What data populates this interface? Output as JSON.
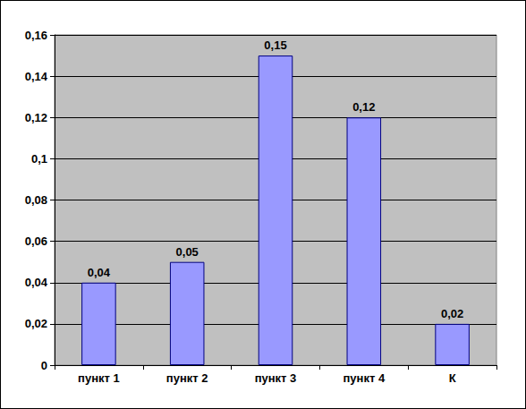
{
  "chart_data": {
    "type": "bar",
    "categories": [
      "пункт 1",
      "пункт 2",
      "пункт 3",
      "пункт 4",
      "К"
    ],
    "values": [
      0.04,
      0.05,
      0.15,
      0.12,
      0.02
    ],
    "value_labels": [
      "0,04",
      "0,05",
      "0,15",
      "0,12",
      "0,02"
    ],
    "color": "#9999ff",
    "ylim": [
      0,
      0.16
    ],
    "yticks": [
      0,
      {
        "value": 0.02,
        "label": "0,02"
      },
      {
        "value": 0.04,
        "label": "0,04"
      },
      {
        "value": 0.06,
        "label": "0,06"
      },
      {
        "value": 0.08,
        "label": "0,08"
      },
      {
        "value": 0.1,
        "label": "0,1"
      },
      {
        "value": 0.12,
        "label": "0,12"
      },
      {
        "value": 0.14,
        "label": "0,14"
      },
      {
        "value": 0.16,
        "label": "0,16"
      }
    ],
    "grid": true,
    "data_labels": true
  }
}
